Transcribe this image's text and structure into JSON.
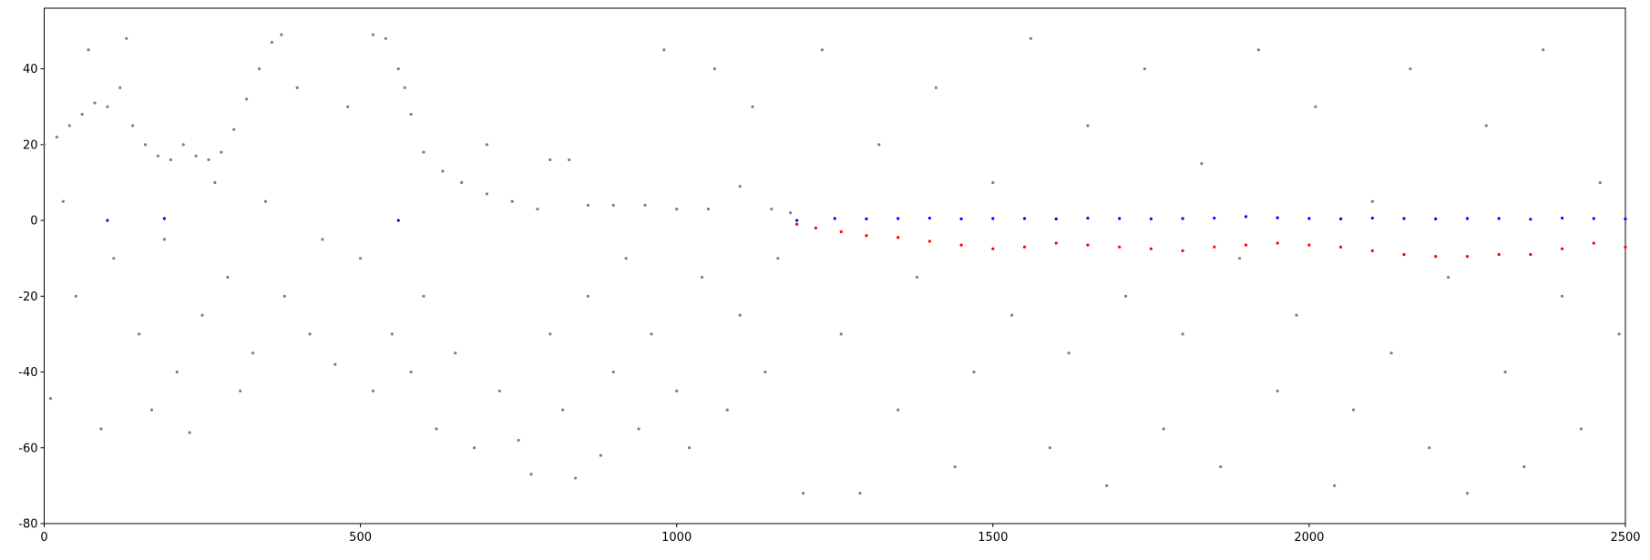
{
  "chart_data": {
    "type": "scatter",
    "xlim": [
      0,
      2500
    ],
    "ylim": [
      -80,
      56
    ],
    "xticks": [
      0,
      500,
      1000,
      1500,
      2000,
      2500
    ],
    "yticks": [
      -80,
      -60,
      -40,
      -20,
      0,
      20,
      40
    ],
    "series": [
      {
        "color": "#808080",
        "x": [
          0,
          20,
          40,
          60,
          80,
          100,
          120,
          140,
          160,
          180,
          200,
          220,
          240,
          260,
          280,
          300,
          320,
          340,
          360,
          375,
          520,
          540,
          560,
          570,
          580,
          600,
          630,
          660,
          700,
          740,
          780,
          800,
          830,
          860,
          900,
          950,
          1000,
          1050,
          1100,
          1150,
          1180,
          10,
          30,
          50,
          70,
          90,
          110,
          130,
          150,
          170,
          190,
          210,
          230,
          250,
          270,
          290,
          310,
          330,
          350,
          380,
          400,
          420,
          440,
          460,
          480,
          500,
          520,
          550,
          580,
          600,
          620,
          650,
          680,
          700,
          720,
          750,
          770,
          800,
          820,
          840,
          860,
          880,
          900,
          920,
          940,
          960,
          980,
          1000,
          1020,
          1040,
          1060,
          1080,
          1100,
          1120,
          1140,
          1160,
          1200,
          1230,
          1260,
          1290,
          1320,
          1350,
          1380,
          1410,
          1440,
          1470,
          1500,
          1530,
          1560,
          1590,
          1620,
          1650,
          1680,
          1710,
          1740,
          1770,
          1800,
          1830,
          1860,
          1890,
          1920,
          1950,
          1980,
          2010,
          2040,
          2070,
          2100,
          2130,
          2160,
          2190,
          2220,
          2250,
          2280,
          2310,
          2340,
          2370,
          2400,
          2430,
          2460,
          2490
        ],
        "y": [
          20,
          22,
          25,
          28,
          31,
          30,
          35,
          25,
          20,
          17,
          16,
          20,
          17,
          16,
          18,
          24,
          32,
          40,
          47,
          49,
          49,
          48,
          40,
          35,
          28,
          18,
          13,
          10,
          7,
          5,
          3,
          16,
          16,
          4,
          4,
          4,
          3,
          3,
          9,
          3,
          2,
          -47,
          5,
          -20,
          45,
          -55,
          -10,
          48,
          -30,
          -50,
          -5,
          -40,
          -56,
          -25,
          10,
          -15,
          -45,
          -35,
          5,
          -20,
          35,
          -30,
          -5,
          -38,
          30,
          -10,
          -45,
          -30,
          -40,
          -20,
          -55,
          -35,
          -60,
          20,
          -45,
          -58,
          -67,
          -30,
          -50,
          -68,
          -20,
          -62,
          -40,
          -10,
          -55,
          -30,
          45,
          -45,
          -60,
          -15,
          40,
          -50,
          -25,
          30,
          -40,
          -10,
          -72,
          45,
          -30,
          -72,
          20,
          -50,
          -15,
          35,
          -65,
          -40,
          10,
          -25,
          48,
          -60,
          -35,
          25,
          -70,
          -20,
          40,
          -55,
          -30,
          15,
          -65,
          -10,
          45,
          -45,
          -25,
          30,
          -70,
          -50,
          5,
          -35,
          40,
          -60,
          -15,
          -72,
          25,
          -40,
          -65,
          45,
          -20,
          -55,
          10,
          -30
        ]
      },
      {
        "color": "#0000ff",
        "x": [
          100,
          190,
          560,
          1190,
          1250,
          1300,
          1350,
          1400,
          1450,
          1500,
          1550,
          1600,
          1650,
          1700,
          1750,
          1800,
          1850,
          1900,
          1950,
          2000,
          2050,
          2100,
          2150,
          2200,
          2250,
          2300,
          2350,
          2400,
          2450,
          2500
        ],
        "y": [
          0,
          0.5,
          0,
          0,
          0.5,
          0.4,
          0.5,
          0.6,
          0.4,
          0.5,
          0.5,
          0.4,
          0.6,
          0.5,
          0.4,
          0.5,
          0.6,
          1,
          0.7,
          0.5,
          0.4,
          0.6,
          0.5,
          0.4,
          0.5,
          0.5,
          0.3,
          0.6,
          0.5,
          0.4
        ]
      },
      {
        "color": "#ff0000",
        "x": [
          1190,
          1220,
          1260,
          1300,
          1350,
          1400,
          1450,
          1500,
          1550,
          1600,
          1650,
          1700,
          1750,
          1800,
          1850,
          1900,
          1950,
          2000,
          2050,
          2100,
          2150,
          2200,
          2250,
          2300,
          2350,
          2400,
          2450,
          2500
        ],
        "y": [
          -1,
          -2,
          -3,
          -4,
          -4.5,
          -5.5,
          -6.5,
          -7.5,
          -7,
          -6,
          -6.5,
          -7,
          -7.5,
          -8,
          -7,
          -6.5,
          -6,
          -6.5,
          -7,
          -8,
          -9,
          -9.5,
          -9.5,
          -9,
          -9,
          -7.5,
          -6,
          -7
        ]
      }
    ]
  }
}
